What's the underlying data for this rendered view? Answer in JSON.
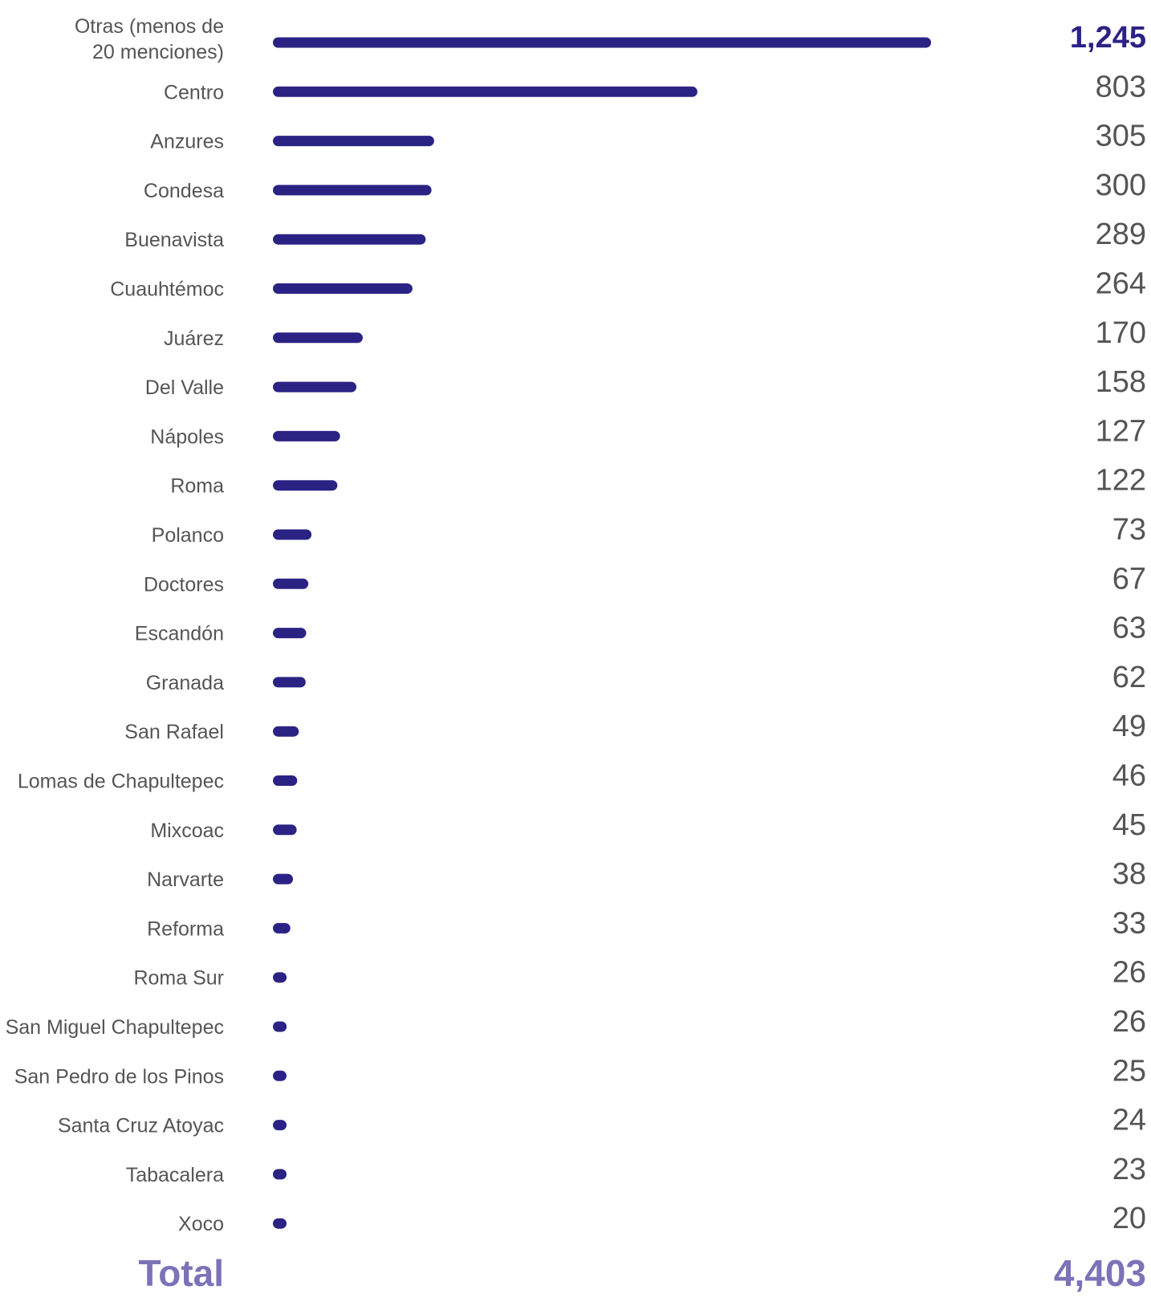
{
  "chart_data": {
    "type": "bar",
    "orientation": "horizontal",
    "categories": [
      "Otras (menos de\n20 menciones)",
      "Centro",
      "Anzures",
      "Condesa",
      "Buenavista",
      "Cuauhtémoc",
      "Juárez",
      "Del Valle",
      "Nápoles",
      "Roma",
      "Polanco",
      "Doctores",
      "Escandón",
      "Granada",
      "San Rafael",
      "Lomas de Chapultepec",
      "Mixcoac",
      "Narvarte",
      "Reforma",
      "Roma Sur",
      "San Miguel Chapultepec",
      "San Pedro de los Pinos",
      "Santa Cruz Atoyac",
      "Tabacalera",
      "Xoco"
    ],
    "values": [
      1245,
      803,
      305,
      300,
      289,
      264,
      170,
      158,
      127,
      122,
      73,
      67,
      63,
      62,
      49,
      46,
      45,
      38,
      33,
      26,
      26,
      25,
      24,
      23,
      20
    ],
    "value_labels": [
      "1,245",
      "803",
      "305",
      "300",
      "289",
      "264",
      "170",
      "158",
      "127",
      "122",
      "73",
      "67",
      "63",
      "62",
      "49",
      "46",
      "45",
      "38",
      "33",
      "26",
      "26",
      "25",
      "24",
      "23",
      "20"
    ],
    "title": "",
    "xlabel": "",
    "ylabel": "",
    "xlim": [
      0,
      1245
    ],
    "grid": false,
    "legend": "none",
    "bar_color": "#2b2384",
    "highlight_value_color": "#2b2384",
    "total_label": "Total",
    "total_value": "4,403",
    "total_color": "#7b72b8"
  }
}
